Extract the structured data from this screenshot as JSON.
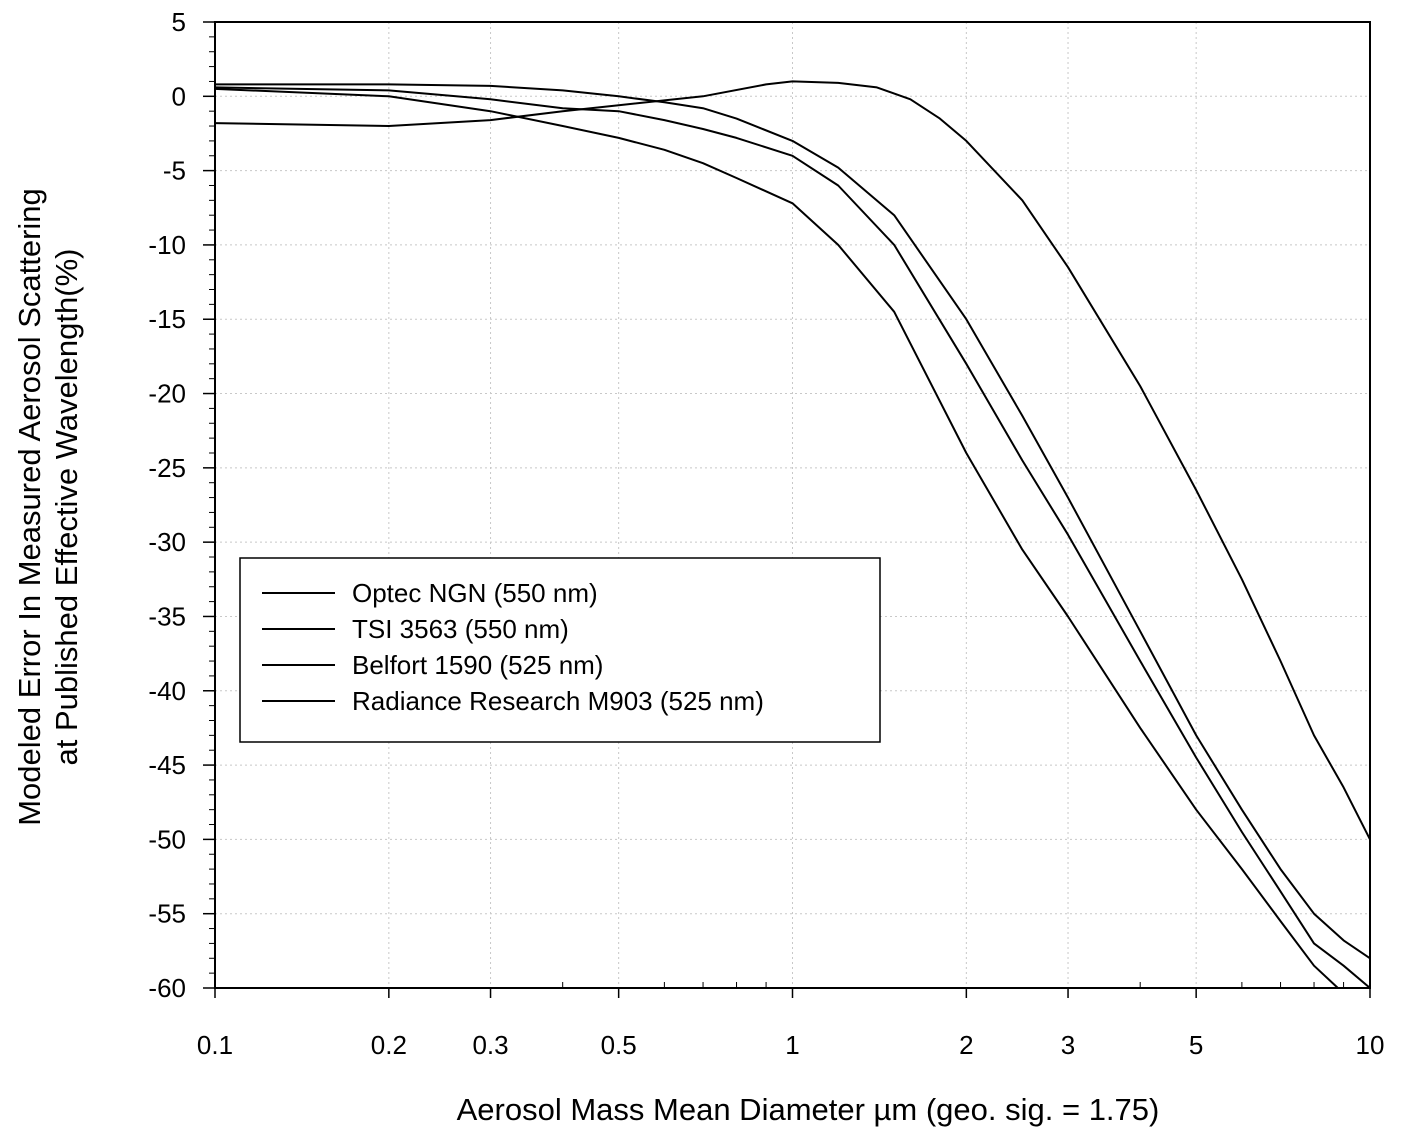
{
  "chart_data": {
    "type": "line",
    "title": "",
    "xlabel": "Aerosol Mass Mean Diameter µm  (geo. sig. = 1.75)",
    "ylabel_line1": "Modeled Error In Measured Aerosol Scattering",
    "ylabel_line2": "at Published Effective Wavelength(%)",
    "x_scale": "log",
    "xlim": [
      0.1,
      10
    ],
    "ylim": [
      -60,
      5
    ],
    "x_ticks": [
      0.1,
      0.2,
      0.3,
      0.5,
      1,
      2,
      3,
      5,
      10
    ],
    "x_tick_labels": [
      "0.1",
      "0.2",
      "0.3",
      "0.5",
      "1",
      "2",
      "3",
      "5",
      "10"
    ],
    "y_ticks": [
      5,
      0,
      -5,
      -10,
      -15,
      -20,
      -25,
      -30,
      -35,
      -40,
      -45,
      -50,
      -55,
      -60
    ],
    "y_tick_labels": [
      "5",
      "0",
      "-5",
      "-10",
      "-15",
      "-20",
      "-25",
      "-30",
      "-35",
      "-40",
      "-45",
      "-50",
      "-55",
      "-60"
    ],
    "grid": true,
    "legend_position": "middle-left",
    "series": [
      {
        "name": "Optec NGN (550 nm)",
        "x": [
          0.1,
          0.2,
          0.3,
          0.4,
          0.5,
          0.7,
          0.9,
          1.0,
          1.2,
          1.4,
          1.6,
          1.8,
          2.0,
          2.5,
          3.0,
          4.0,
          5.0,
          6.0,
          7.0,
          8.0,
          9.0,
          10.0
        ],
        "y": [
          -1.8,
          -2.0,
          -1.6,
          -1.0,
          -0.6,
          0.0,
          0.8,
          1.0,
          0.9,
          0.6,
          -0.2,
          -1.5,
          -3.0,
          -7.0,
          -11.5,
          -19.5,
          -26.5,
          -32.5,
          -38.0,
          -43.0,
          -46.5,
          -50.0
        ]
      },
      {
        "name": "TSI 3563 (550 nm)",
        "x": [
          0.1,
          0.2,
          0.3,
          0.4,
          0.5,
          0.6,
          0.7,
          0.8,
          1.0,
          1.2,
          1.5,
          2.0,
          2.5,
          3.0,
          4.0,
          5.0,
          6.0,
          7.0,
          8.0,
          9.0,
          10.0
        ],
        "y": [
          0.8,
          0.8,
          0.7,
          0.4,
          0.0,
          -0.4,
          -0.8,
          -1.5,
          -3.0,
          -4.8,
          -8.0,
          -15.0,
          -21.5,
          -27.0,
          -36.0,
          -43.0,
          -48.0,
          -52.0,
          -55.0,
          -56.8,
          -58.0
        ]
      },
      {
        "name": "Belfort 1590 (525 nm)",
        "x": [
          0.1,
          0.2,
          0.3,
          0.4,
          0.5,
          0.6,
          0.7,
          0.8,
          1.0,
          1.2,
          1.5,
          2.0,
          2.5,
          3.0,
          4.0,
          5.0,
          6.0,
          7.0,
          8.0,
          9.0,
          10.0
        ],
        "y": [
          0.6,
          0.4,
          -0.2,
          -0.8,
          -1.0,
          -1.6,
          -2.2,
          -2.8,
          -4.0,
          -6.0,
          -10.0,
          -18.0,
          -24.5,
          -29.5,
          -38.0,
          -44.5,
          -49.5,
          -53.5,
          -57.0,
          -58.5,
          -60.0
        ]
      },
      {
        "name": "Radiance Research M903 (525 nm)",
        "x": [
          0.1,
          0.2,
          0.3,
          0.4,
          0.5,
          0.6,
          0.7,
          0.8,
          1.0,
          1.2,
          1.5,
          2.0,
          2.5,
          3.0,
          4.0,
          5.0,
          6.0,
          7.0,
          8.0,
          8.8
        ],
        "y": [
          0.5,
          0.0,
          -1.0,
          -2.0,
          -2.8,
          -3.6,
          -4.5,
          -5.5,
          -7.2,
          -10.0,
          -14.5,
          -24.0,
          -30.5,
          -35.0,
          -42.5,
          -48.0,
          -52.0,
          -55.5,
          -58.5,
          -60.0
        ]
      }
    ]
  }
}
